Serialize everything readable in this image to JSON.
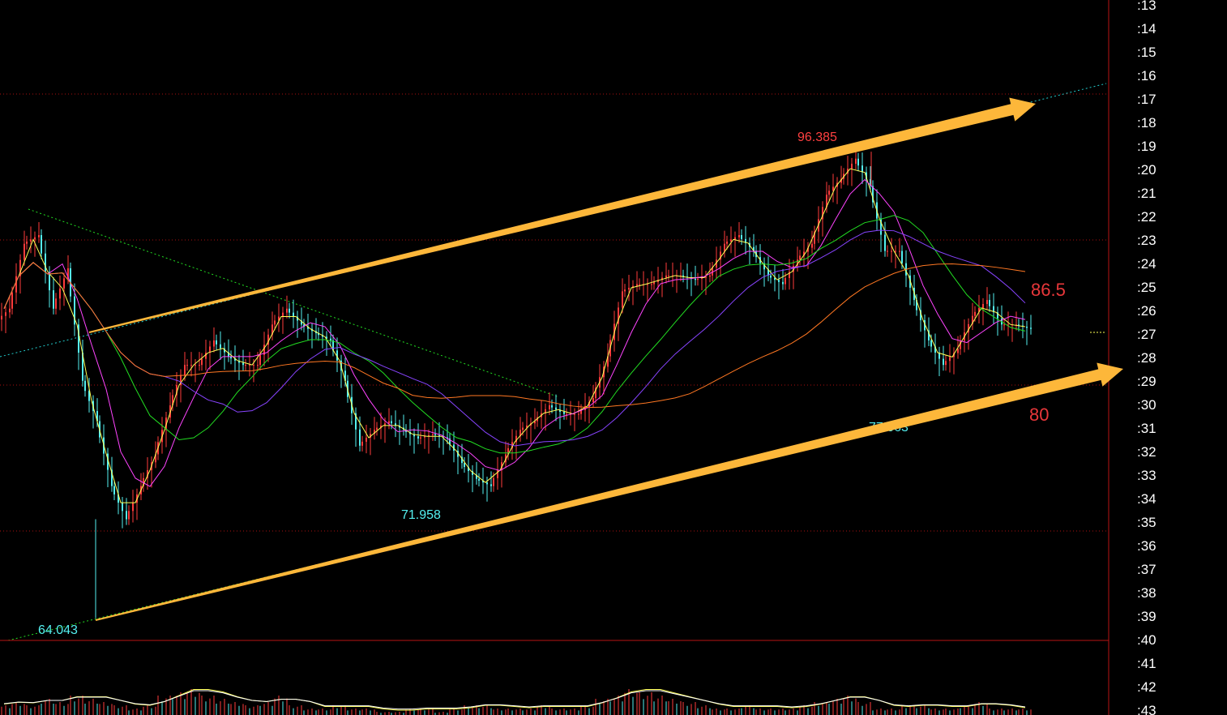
{
  "chart_data": {
    "type": "candlestick",
    "ylim": [
      62.5,
      106.9
    ],
    "grid": "dotted horizontal red lines",
    "right_axis_ticks": [
      ":13",
      ":14",
      ":15",
      ":16",
      ":17",
      ":18",
      ":19",
      ":20",
      ":21",
      ":22",
      ":23",
      ":24",
      ":25",
      ":26",
      ":27",
      ":28",
      ":29",
      ":30",
      ":31",
      ":32",
      ":33",
      ":34",
      ":35",
      ":36",
      ":37",
      ":38",
      ":39",
      ":40",
      ":41",
      ":42",
      ":43"
    ],
    "closes": [
      85.5,
      90.0,
      90.6,
      85.5,
      88.3,
      80.5,
      77.7,
      73.2,
      70.9,
      73.2,
      75.4,
      78.8,
      81.6,
      81.6,
      83.3,
      82.2,
      81.6,
      81.6,
      84.4,
      85.5,
      84.4,
      83.8,
      83.3,
      80.5,
      76.0,
      77.1,
      77.7,
      77.1,
      76.5,
      76.8,
      76.5,
      74.8,
      73.7,
      73.2,
      75.4,
      77.1,
      77.7,
      78.8,
      78.2,
      78.2,
      79.3,
      82.2,
      86.7,
      87.2,
      87.2,
      87.8,
      87.8,
      87.5,
      87.8,
      90.0,
      90.6,
      89.5,
      87.8,
      87.2,
      88.9,
      90.0,
      93.4,
      94.5,
      95.9,
      94.0,
      89.5,
      89.5,
      86.1,
      83.3,
      81.6,
      82.7,
      85.0,
      86.1,
      84.4,
      84.4,
      84.1
    ],
    "volume": [
      3,
      4,
      3,
      5,
      4,
      6,
      5,
      4,
      3,
      2,
      3,
      6,
      7,
      8,
      6,
      5,
      4,
      3,
      4,
      6,
      3,
      2,
      2,
      3,
      2,
      2,
      1,
      1,
      2,
      2,
      1,
      2,
      3,
      3,
      2,
      2,
      2,
      3,
      2,
      2,
      3,
      5,
      6,
      8,
      7,
      6,
      5,
      4,
      3,
      2,
      2,
      3,
      2,
      2,
      2,
      3,
      4,
      5,
      6,
      4,
      2,
      2,
      3,
      3,
      2,
      2,
      3,
      4,
      2,
      2,
      2
    ],
    "price_labels": {
      "high": "96.385",
      "low_1": "64.043",
      "low_2": "71.958",
      "low_3": "77.063"
    },
    "annotations": {
      "upper_target": "86.5",
      "lower_target": "80"
    },
    "colors": {
      "up": "#ff3b3b",
      "down": "#54f0f0",
      "arrow": "#fdb73a",
      "ma5": "#ffff55",
      "ma10": "#ff44ff",
      "ma20": "#22dd22",
      "ma30": "#8844ff",
      "ma60": "#ff7722",
      "grid": "#aa1111"
    }
  }
}
